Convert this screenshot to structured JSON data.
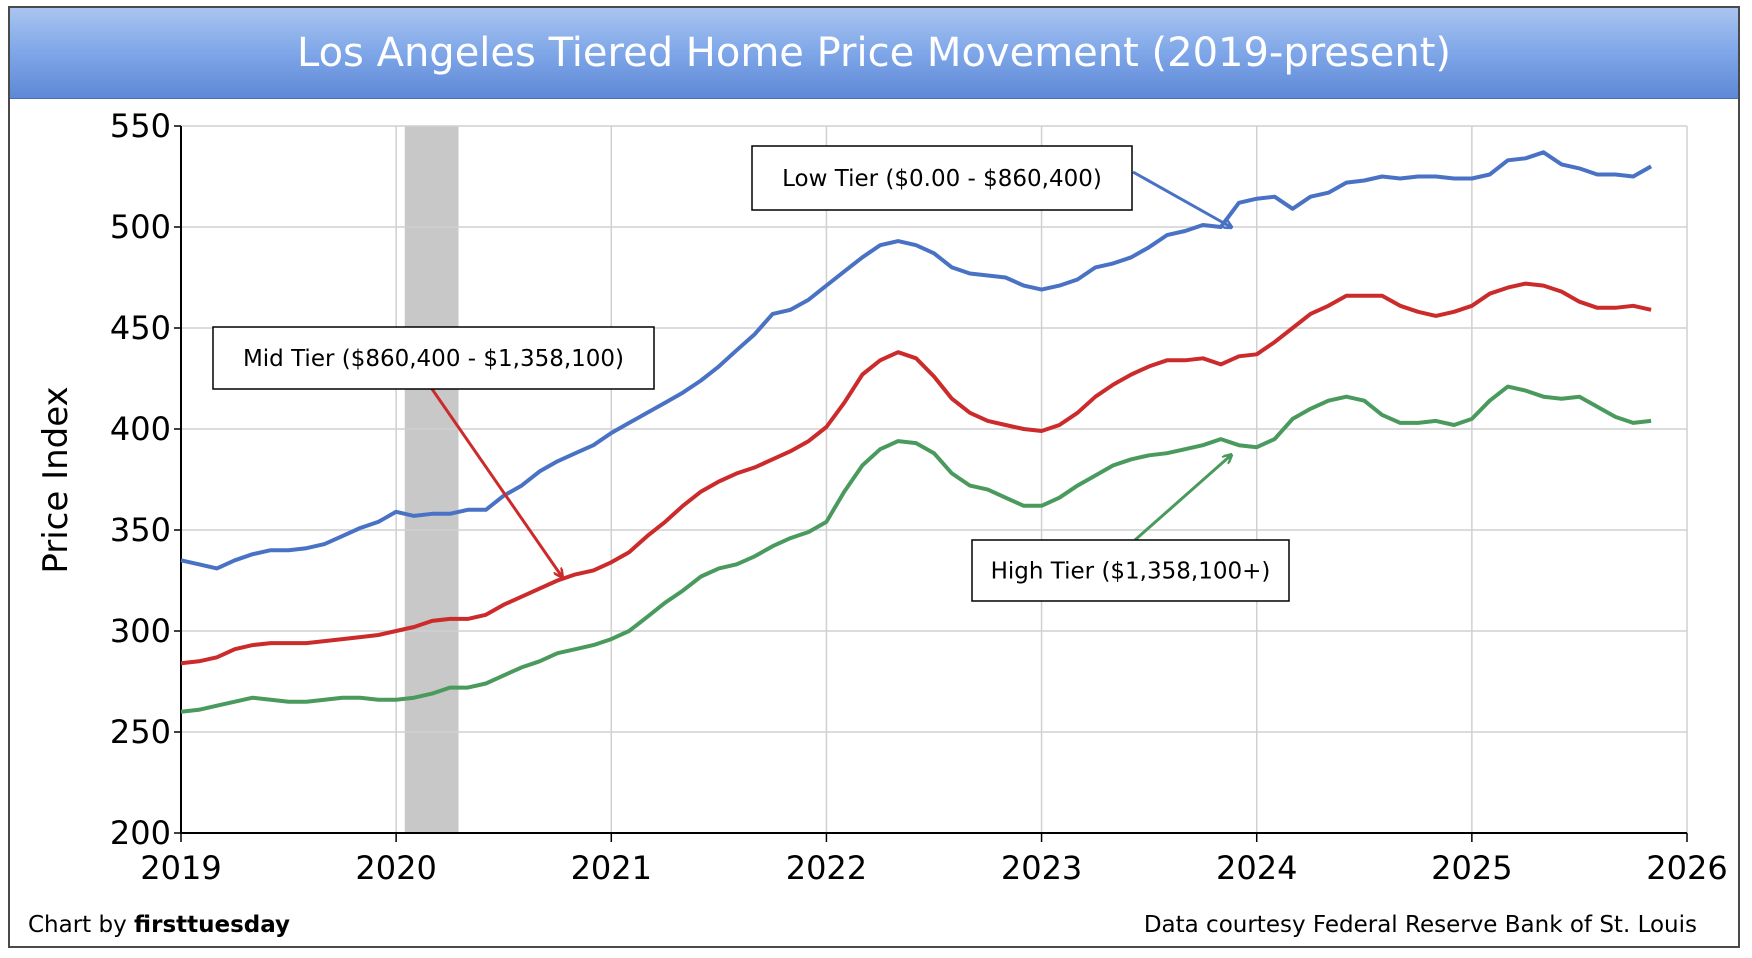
{
  "header": {
    "title": "Los Angeles Tiered Home Price Movement (2019-present)"
  },
  "footer": {
    "credit_prefix": "Chart by ",
    "credit_name": "firsttuesday",
    "source": "Data courtesy Federal Reserve Bank of St. Louis"
  },
  "colors": {
    "low": "#4a72c4",
    "mid": "#cc2b2b",
    "high": "#4a9a5e",
    "recession": "#c8c8c8",
    "grid": "#d0d0d0"
  },
  "chart_data": {
    "type": "line",
    "title": "Los Angeles Tiered Home Price Movement (2019-present)",
    "xlabel": "",
    "ylabel": "Price Index",
    "xlim": [
      2019,
      2026
    ],
    "ylim": [
      200,
      550
    ],
    "x_ticks": [
      "2019",
      "2020",
      "2021",
      "2022",
      "2023",
      "2024",
      "2025",
      "2026"
    ],
    "y_ticks": [
      200,
      250,
      300,
      350,
      400,
      450,
      500,
      550
    ],
    "grid": true,
    "recession_band": [
      2020.04,
      2020.29
    ],
    "x": [
      2019.0,
      2019.083,
      2019.167,
      2019.25,
      2019.333,
      2019.417,
      2019.5,
      2019.583,
      2019.667,
      2019.75,
      2019.833,
      2019.917,
      2020.0,
      2020.083,
      2020.167,
      2020.25,
      2020.333,
      2020.417,
      2020.5,
      2020.583,
      2020.667,
      2020.75,
      2020.833,
      2020.917,
      2021.0,
      2021.083,
      2021.167,
      2021.25,
      2021.333,
      2021.417,
      2021.5,
      2021.583,
      2021.667,
      2021.75,
      2021.833,
      2021.917,
      2022.0,
      2022.083,
      2022.167,
      2022.25,
      2022.333,
      2022.417,
      2022.5,
      2022.583,
      2022.667,
      2022.75,
      2022.833,
      2022.917,
      2023.0,
      2023.083,
      2023.167,
      2023.25,
      2023.333,
      2023.417,
      2023.5,
      2023.583,
      2023.667,
      2023.75,
      2023.833,
      2023.917,
      2024.0,
      2024.083,
      2024.167,
      2024.25,
      2024.333,
      2024.417,
      2024.5,
      2024.583,
      2024.667,
      2024.75,
      2024.833,
      2024.917,
      2025.0,
      2025.083,
      2025.167,
      2025.25,
      2025.333,
      2025.417,
      2025.5,
      2025.583,
      2025.667,
      2025.75,
      2025.833
    ],
    "series": [
      {
        "name": "Low Tier ($0.00 - $860,400)",
        "color": "#4a72c4",
        "values": [
          335,
          333,
          331,
          335,
          338,
          340,
          340,
          341,
          343,
          347,
          351,
          354,
          359,
          357,
          358,
          358,
          360,
          360,
          367,
          372,
          379,
          384,
          388,
          392,
          398,
          403,
          408,
          413,
          418,
          424,
          431,
          439,
          447,
          457,
          459,
          464,
          471,
          478,
          485,
          491,
          493,
          491,
          487,
          480,
          477,
          476,
          475,
          471,
          469,
          471,
          474,
          480,
          482,
          485,
          490,
          496,
          498,
          501,
          500,
          512,
          514,
          515,
          509,
          515,
          517,
          522,
          523,
          525,
          524,
          525,
          525,
          524,
          524,
          526,
          533,
          534,
          537,
          531,
          529,
          526,
          526,
          525,
          530
        ]
      },
      {
        "name": "Mid Tier ($860,400 - $1,358,100)",
        "color": "#cc2b2b",
        "values": [
          284,
          285,
          287,
          291,
          293,
          294,
          294,
          294,
          295,
          296,
          297,
          298,
          300,
          302,
          305,
          306,
          306,
          308,
          313,
          317,
          321,
          325,
          328,
          330,
          334,
          339,
          347,
          354,
          362,
          369,
          374,
          378,
          381,
          385,
          389,
          394,
          401,
          413,
          427,
          434,
          438,
          435,
          426,
          415,
          408,
          404,
          402,
          400,
          399,
          402,
          408,
          416,
          422,
          427,
          431,
          434,
          434,
          435,
          432,
          436,
          437,
          443,
          450,
          457,
          461,
          466,
          466,
          466,
          461,
          458,
          456,
          458,
          461,
          467,
          470,
          472,
          471,
          468,
          463,
          460,
          460,
          461,
          459
        ]
      },
      {
        "name": "High Tier ($1,358,100+)",
        "color": "#4a9a5e",
        "values": [
          260,
          261,
          263,
          265,
          267,
          266,
          265,
          265,
          266,
          267,
          267,
          266,
          266,
          267,
          269,
          272,
          272,
          274,
          278,
          282,
          285,
          289,
          291,
          293,
          296,
          300,
          307,
          314,
          320,
          327,
          331,
          333,
          337,
          342,
          346,
          349,
          354,
          369,
          382,
          390,
          394,
          393,
          388,
          378,
          372,
          370,
          366,
          362,
          362,
          366,
          372,
          377,
          382,
          385,
          387,
          388,
          390,
          392,
          395,
          392,
          391,
          395,
          405,
          410,
          414,
          416,
          414,
          407,
          403,
          403,
          404,
          402,
          405,
          414,
          421,
          419,
          416,
          415,
          416,
          411,
          406,
          403,
          404
        ]
      }
    ],
    "annotations": [
      {
        "text": "Low Tier ($0.00 - $860,400)",
        "series": 0,
        "arrow_to": [
          2023.88,
          500
        ]
      },
      {
        "text": "Mid Tier ($860,400 - $1,358,100)",
        "series": 1,
        "arrow_to": [
          2020.77,
          327
        ]
      },
      {
        "text": "High Tier ($1,358,100+)",
        "series": 2,
        "arrow_to": [
          2023.88,
          387
        ]
      }
    ]
  }
}
